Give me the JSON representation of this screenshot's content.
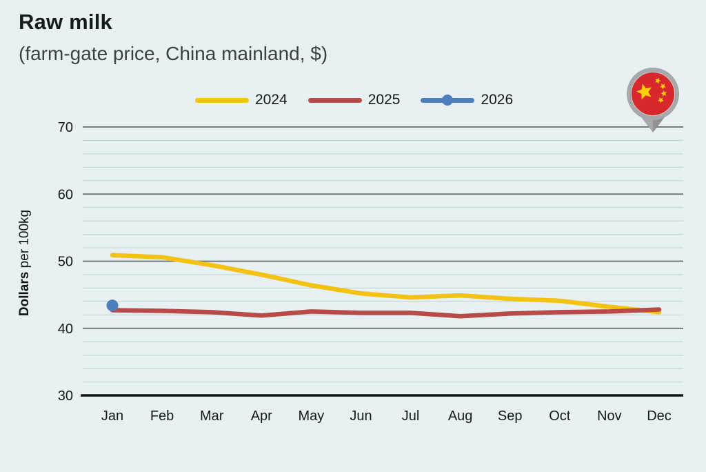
{
  "header": {
    "title": "Raw milk",
    "subtitle": "(farm-gate price, China mainland, $)"
  },
  "legend": [
    {
      "label": "2024",
      "color": "#F3C212",
      "marker": false
    },
    {
      "label": "2025",
      "color": "#B84B47",
      "marker": false
    },
    {
      "label": "2026",
      "color": "#4D7EBE",
      "marker": true
    }
  ],
  "icons": {
    "flag_pin": "china-flag-map-pin"
  },
  "colors": {
    "background": "#E7F1F4",
    "grid_major": "#5F6A6D",
    "grid_minor": "#C3D2D5",
    "axis": "#101314",
    "tick_text": "#15181A",
    "series_2024": "#F3C212",
    "series_2025": "#B84B47",
    "series_2026": "#4D7EBE",
    "flag_red": "#D9272E",
    "flag_yellow": "#FCCF08",
    "pin_gray": "#A6A8AA",
    "pin_gray_dark": "#8E9092"
  },
  "chart_data": {
    "type": "line",
    "title": "Raw milk",
    "subtitle": "(farm-gate price, China mainland, $)",
    "ylabel_bold": "Dollars",
    "ylabel_rest": " per 100kg",
    "categories": [
      "Jan",
      "Feb",
      "Mar",
      "Apr",
      "May",
      "Jun",
      "Jul",
      "Aug",
      "Sep",
      "Oct",
      "Nov",
      "Dec"
    ],
    "ylim": [
      30,
      70
    ],
    "yticks": [
      30,
      40,
      50,
      60,
      70
    ],
    "minor_grid_step": 2,
    "grid": true,
    "legend_position": "top",
    "series": [
      {
        "name": "2024",
        "color": "#F3C212",
        "values": [
          50.9,
          50.6,
          49.4,
          48.0,
          46.4,
          45.2,
          44.6,
          44.9,
          44.4,
          44.1,
          43.2,
          42.4
        ]
      },
      {
        "name": "2025",
        "color": "#B84B47",
        "values": [
          42.7,
          42.6,
          42.4,
          41.9,
          42.5,
          42.3,
          42.3,
          41.8,
          42.2,
          42.4,
          42.5,
          42.8
        ]
      },
      {
        "name": "2026",
        "color": "#4D7EBE",
        "values": [
          43.4,
          null,
          null,
          null,
          null,
          null,
          null,
          null,
          null,
          null,
          null,
          null
        ]
      }
    ]
  }
}
